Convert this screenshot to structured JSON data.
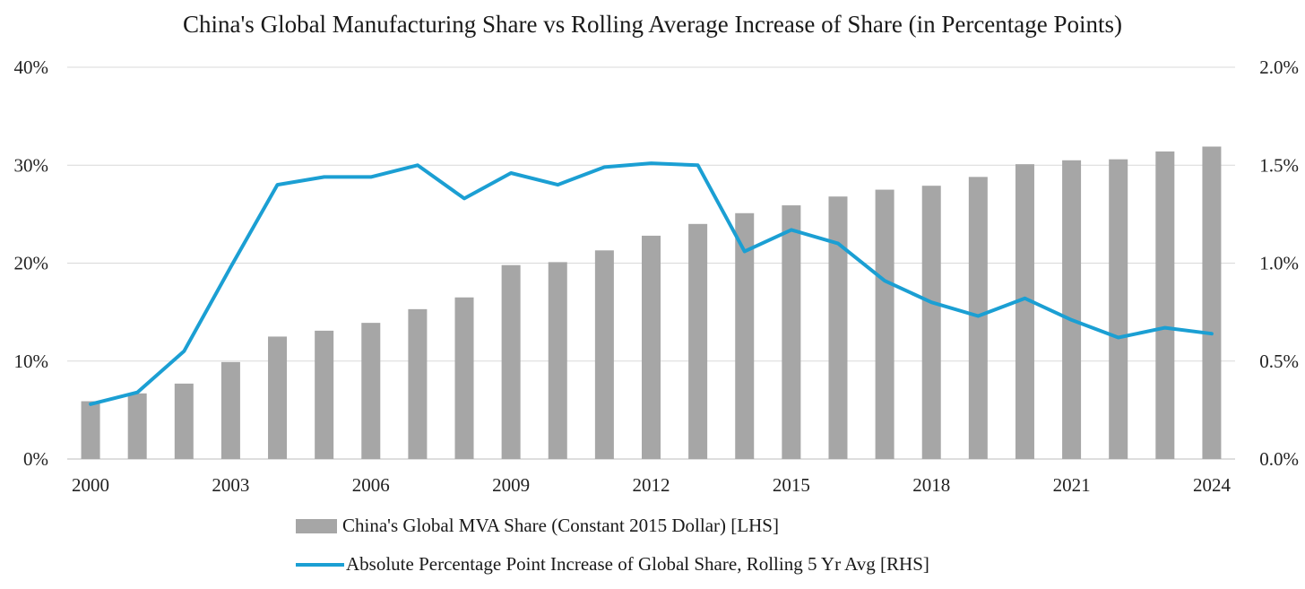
{
  "chart_data": {
    "type": "bar",
    "title": "China's Global Manufacturing Share vs Rolling Average Increase of Share (in Percentage Points)",
    "x": [
      2000,
      2001,
      2002,
      2003,
      2004,
      2005,
      2006,
      2007,
      2008,
      2009,
      2010,
      2011,
      2012,
      2013,
      2014,
      2015,
      2016,
      2017,
      2018,
      2019,
      2020,
      2021,
      2022,
      2023,
      2024
    ],
    "x_tick_labels": [
      "2000",
      "2003",
      "2006",
      "2009",
      "2012",
      "2015",
      "2018",
      "2021",
      "2024"
    ],
    "y_left": {
      "ylim": [
        0,
        40
      ],
      "ticks": [
        "0%",
        "10%",
        "20%",
        "30%",
        "40%"
      ]
    },
    "y_right": {
      "ylim": [
        0,
        2.0
      ],
      "ticks": [
        "0.0%",
        "0.5%",
        "1.0%",
        "1.5%",
        "2.0%"
      ]
    },
    "grid": true,
    "legend_position": "bottom",
    "series": [
      {
        "name": "China's Global MVA Share (Constant 2015 Dollar) [LHS]",
        "type": "bar",
        "axis": "left",
        "color": "#a6a6a6",
        "values": [
          5.9,
          6.7,
          7.7,
          9.9,
          12.5,
          13.1,
          13.9,
          15.3,
          16.5,
          19.8,
          20.1,
          21.3,
          22.8,
          24.0,
          25.1,
          25.9,
          26.8,
          27.5,
          27.9,
          28.8,
          30.1,
          30.5,
          30.6,
          31.4,
          31.9
        ]
      },
      {
        "name": "Absolute Percentage Point Increase of Global Share, Rolling 5 Yr Avg [RHS]",
        "type": "line",
        "axis": "right",
        "color": "#1b9fd3",
        "values": [
          0.28,
          0.34,
          0.55,
          0.98,
          1.4,
          1.44,
          1.44,
          1.5,
          1.33,
          1.46,
          1.4,
          1.49,
          1.51,
          1.5,
          1.06,
          1.17,
          1.1,
          0.91,
          0.8,
          0.73,
          0.82,
          0.71,
          0.62,
          0.67,
          0.64
        ]
      }
    ]
  }
}
